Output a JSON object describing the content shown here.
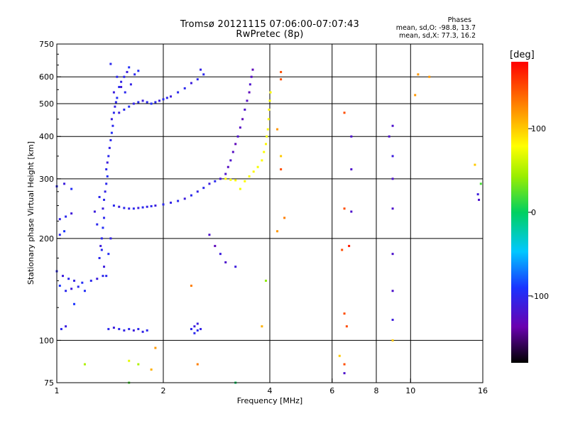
{
  "header": {
    "title_line1": "Tromsø 20121115 07:06:00-07:07:43",
    "title_line2": "RwPretec (8p)",
    "phases_label": "Phases",
    "stats_o": "mean, sd,O: -98.8, 13.7",
    "stats_x": "mean, sd,X:  77.3, 16.2"
  },
  "colorbar": {
    "unit": "[deg]",
    "ticks": [
      {
        "v": 100,
        "label": "100"
      },
      {
        "v": 0,
        "label": "0"
      },
      {
        "v": -100,
        "label": "-100"
      }
    ],
    "range": [
      -180,
      180
    ]
  },
  "chart_data": {
    "type": "scatter",
    "title": "Tromsø 20121115 07:06:00-07:07:43",
    "subtitle": "RwPretec (8p)",
    "xlabel": "Frequency [MHz]",
    "ylabel": "Stationary phase Virtual Height [km]",
    "xscale": "log",
    "yscale": "log",
    "xlim": [
      1,
      16
    ],
    "ylim": [
      75,
      750
    ],
    "xticks": [
      {
        "v": 1,
        "label": "1"
      },
      {
        "v": 2,
        "label": "2"
      },
      {
        "v": 4,
        "label": "4"
      },
      {
        "v": 6,
        "label": "6"
      },
      {
        "v": 8,
        "label": "8"
      },
      {
        "v": 10,
        "label": "10"
      },
      {
        "v": 16,
        "label": "16"
      }
    ],
    "yticks": [
      {
        "v": 75,
        "label": "75"
      },
      {
        "v": 100,
        "label": "100"
      },
      {
        "v": 200,
        "label": "200"
      },
      {
        "v": 300,
        "label": "300"
      },
      {
        "v": 400,
        "label": "400"
      },
      {
        "v": 500,
        "label": "500"
      },
      {
        "v": 600,
        "label": "600"
      },
      {
        "v": 750,
        "label": "750"
      }
    ],
    "grid_x": [
      2,
      4,
      6,
      8,
      10
    ],
    "grid_y": [
      100,
      200,
      300,
      400,
      500,
      600
    ],
    "color_quantity": "phase [deg]",
    "series": [
      {
        "points": [
          [
            1.0,
            285,
            -100
          ],
          [
            1.05,
            290,
            -110
          ],
          [
            1.1,
            280,
            -95
          ],
          [
            1.02,
            228,
            -105
          ],
          [
            1.06,
            232,
            -100
          ],
          [
            1.1,
            237,
            -112
          ],
          [
            1.02,
            205,
            -100
          ],
          [
            1.05,
            210,
            -90
          ],
          [
            1.0,
            160,
            -100
          ],
          [
            1.04,
            155,
            -110
          ],
          [
            1.08,
            152,
            -100
          ],
          [
            1.12,
            150,
            -105
          ],
          [
            1.18,
            148,
            -95
          ],
          [
            1.25,
            150,
            -100
          ],
          [
            1.3,
            152,
            -110
          ],
          [
            1.35,
            155,
            -100
          ],
          [
            1.02,
            145,
            -90
          ],
          [
            1.06,
            140,
            -100
          ],
          [
            1.1,
            142,
            -110
          ],
          [
            1.15,
            144,
            -100
          ],
          [
            1.2,
            140,
            -95
          ],
          [
            1.03,
            108,
            -100
          ],
          [
            1.06,
            110,
            -110
          ],
          [
            1.12,
            128,
            -90
          ],
          [
            1.32,
            175,
            -100
          ],
          [
            1.33,
            190,
            -110
          ],
          [
            1.34,
            200,
            -100
          ],
          [
            1.35,
            215,
            -95
          ],
          [
            1.36,
            230,
            -100
          ],
          [
            1.35,
            245,
            -110
          ],
          [
            1.36,
            260,
            -100
          ],
          [
            1.37,
            275,
            -105
          ],
          [
            1.38,
            290,
            -100
          ],
          [
            1.39,
            305,
            -95
          ],
          [
            1.38,
            320,
            -100
          ],
          [
            1.39,
            335,
            -110
          ],
          [
            1.4,
            350,
            -100
          ],
          [
            1.41,
            370,
            -105
          ],
          [
            1.42,
            390,
            -100
          ],
          [
            1.43,
            410,
            -95
          ],
          [
            1.44,
            430,
            -100
          ],
          [
            1.43,
            450,
            -110
          ],
          [
            1.45,
            470,
            -100
          ],
          [
            1.46,
            490,
            -105
          ],
          [
            1.47,
            505,
            -100
          ],
          [
            1.48,
            520,
            -95
          ],
          [
            1.45,
            540,
            -110
          ],
          [
            1.5,
            560,
            -100
          ],
          [
            1.52,
            580,
            -105
          ],
          [
            1.55,
            600,
            -100
          ],
          [
            1.58,
            620,
            -110
          ],
          [
            1.6,
            640,
            -95
          ],
          [
            1.42,
            655,
            -100
          ],
          [
            1.5,
            470,
            -110
          ],
          [
            1.55,
            480,
            -100
          ],
          [
            1.6,
            490,
            -95
          ],
          [
            1.65,
            500,
            -105
          ],
          [
            1.7,
            505,
            -100
          ],
          [
            1.75,
            510,
            -110
          ],
          [
            1.8,
            505,
            -100
          ],
          [
            1.85,
            500,
            -95
          ],
          [
            1.9,
            505,
            -100
          ],
          [
            1.95,
            510,
            -110
          ],
          [
            2.0,
            515,
            -100
          ],
          [
            2.05,
            520,
            -100
          ],
          [
            2.1,
            525,
            -110
          ],
          [
            2.2,
            540,
            -100
          ],
          [
            2.3,
            555,
            -100
          ],
          [
            2.4,
            575,
            -110
          ],
          [
            2.5,
            590,
            -100
          ],
          [
            2.6,
            610,
            -100
          ],
          [
            2.55,
            630,
            -105
          ],
          [
            1.48,
            600,
            -100
          ],
          [
            1.52,
            560,
            -110
          ],
          [
            1.56,
            540,
            -100
          ],
          [
            1.62,
            570,
            -105
          ],
          [
            1.66,
            610,
            -100
          ],
          [
            1.7,
            625,
            -95
          ],
          [
            1.45,
            250,
            -100
          ],
          [
            1.5,
            248,
            -110
          ],
          [
            1.55,
            246,
            -100
          ],
          [
            1.6,
            245,
            -105
          ],
          [
            1.65,
            245,
            -100
          ],
          [
            1.7,
            246,
            -110
          ],
          [
            1.75,
            247,
            -100
          ],
          [
            1.8,
            248,
            -105
          ],
          [
            1.85,
            249,
            -100
          ],
          [
            1.9,
            250,
            -110
          ],
          [
            2.0,
            252,
            -100
          ],
          [
            2.1,
            255,
            -105
          ],
          [
            2.2,
            258,
            -100
          ],
          [
            2.3,
            262,
            -110
          ],
          [
            2.4,
            268,
            -100
          ],
          [
            2.5,
            275,
            -105
          ],
          [
            2.6,
            282,
            -100
          ],
          [
            2.7,
            290,
            -110
          ],
          [
            2.8,
            295,
            -100
          ],
          [
            1.38,
            155,
            -100
          ],
          [
            1.36,
            165,
            -110
          ],
          [
            1.34,
            185,
            -100
          ],
          [
            1.4,
            180,
            -95
          ],
          [
            1.42,
            200,
            -105
          ],
          [
            1.3,
            220,
            -100
          ],
          [
            1.28,
            240,
            -110
          ],
          [
            1.32,
            265,
            -100
          ],
          [
            1.4,
            108,
            -100
          ],
          [
            1.45,
            109,
            -110
          ],
          [
            1.5,
            108,
            -100
          ],
          [
            1.55,
            107,
            -105
          ],
          [
            1.6,
            108,
            -100
          ],
          [
            1.65,
            107,
            -110
          ],
          [
            1.7,
            108,
            -100
          ],
          [
            1.75,
            106,
            -105
          ],
          [
            1.8,
            107,
            -100
          ],
          [
            2.4,
            108,
            -100
          ],
          [
            2.45,
            110,
            -110
          ],
          [
            2.5,
            107,
            -100
          ],
          [
            2.55,
            108,
            -105
          ],
          [
            2.45,
            105,
            -100
          ],
          [
            2.5,
            112,
            -110
          ],
          [
            2.9,
            300,
            -115
          ],
          [
            3.0,
            310,
            -120
          ],
          [
            3.05,
            325,
            -125
          ],
          [
            3.1,
            340,
            -120
          ],
          [
            3.15,
            360,
            -125
          ],
          [
            3.2,
            380,
            -130
          ],
          [
            3.25,
            400,
            -120
          ],
          [
            3.3,
            425,
            -125
          ],
          [
            3.35,
            450,
            -130
          ],
          [
            3.4,
            480,
            -120
          ],
          [
            3.45,
            510,
            -125
          ],
          [
            3.5,
            540,
            -130
          ],
          [
            3.52,
            570,
            -120
          ],
          [
            3.55,
            600,
            -125
          ],
          [
            3.58,
            630,
            -130
          ],
          [
            3.3,
            280,
            75
          ],
          [
            3.4,
            295,
            80
          ],
          [
            3.5,
            305,
            78
          ],
          [
            3.6,
            315,
            82
          ],
          [
            3.7,
            325,
            76
          ],
          [
            3.8,
            340,
            80
          ],
          [
            3.85,
            360,
            78
          ],
          [
            3.9,
            380,
            82
          ],
          [
            3.92,
            400,
            76
          ],
          [
            3.95,
            420,
            80
          ],
          [
            3.97,
            450,
            78
          ],
          [
            3.98,
            480,
            82
          ],
          [
            4.0,
            510,
            76
          ],
          [
            4.02,
            540,
            80
          ],
          [
            3.0,
            300,
            80
          ],
          [
            3.1,
            298,
            78
          ],
          [
            3.2,
            297,
            82
          ],
          [
            6.5,
            470,
            150
          ],
          [
            6.8,
            400,
            -120
          ],
          [
            6.8,
            320,
            -120
          ],
          [
            6.5,
            245,
            150
          ],
          [
            6.8,
            240,
            -120
          ],
          [
            6.4,
            185,
            150
          ],
          [
            6.7,
            190,
            170
          ],
          [
            6.5,
            120,
            150
          ],
          [
            6.6,
            110,
            150
          ],
          [
            6.3,
            90,
            100
          ],
          [
            6.5,
            85,
            150
          ],
          [
            6.5,
            80,
            -120
          ],
          [
            8.7,
            400,
            -120
          ],
          [
            8.9,
            430,
            -120
          ],
          [
            8.9,
            350,
            -110
          ],
          [
            8.9,
            300,
            -120
          ],
          [
            8.9,
            245,
            -120
          ],
          [
            8.9,
            180,
            -120
          ],
          [
            8.9,
            140,
            -120
          ],
          [
            8.9,
            115,
            -110
          ],
          [
            8.9,
            100,
            100
          ],
          [
            4.3,
            620,
            150
          ],
          [
            4.3,
            590,
            150
          ],
          [
            4.2,
            420,
            120
          ],
          [
            4.3,
            350,
            100
          ],
          [
            4.3,
            320,
            150
          ],
          [
            4.4,
            230,
            130
          ],
          [
            4.2,
            210,
            120
          ],
          [
            10.5,
            610,
            120
          ],
          [
            11.3,
            600,
            120
          ],
          [
            10.3,
            530,
            120
          ],
          [
            15.2,
            330,
            100
          ],
          [
            15.5,
            270,
            -110
          ],
          [
            15.6,
            260,
            -120
          ],
          [
            15.8,
            290,
            20
          ],
          [
            3.9,
            150,
            40
          ],
          [
            3.8,
            110,
            110
          ],
          [
            3.2,
            165,
            -110
          ],
          [
            3.0,
            170,
            -120
          ],
          [
            2.7,
            205,
            -120
          ],
          [
            2.8,
            190,
            -130
          ],
          [
            2.9,
            180,
            -110
          ],
          [
            2.4,
            145,
            130
          ],
          [
            2.5,
            85,
            130
          ],
          [
            1.9,
            95,
            120
          ],
          [
            1.7,
            85,
            50
          ],
          [
            1.85,
            82,
            110
          ],
          [
            1.6,
            87,
            70
          ],
          [
            1.2,
            85,
            50
          ],
          [
            1.6,
            75,
            20
          ],
          [
            3.2,
            75,
            0
          ]
        ]
      }
    ]
  }
}
